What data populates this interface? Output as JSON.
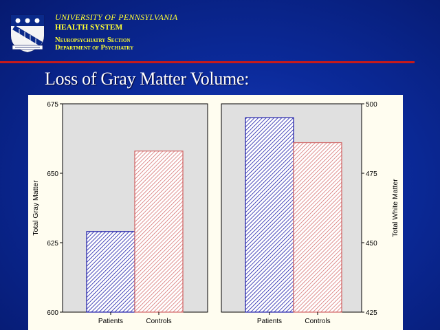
{
  "header": {
    "university": "UNIVERSITY OF PENNSYLVANIA",
    "health_system": "HEALTH SYSTEM",
    "section": "Neuropsychiatry Section",
    "department": "Department of Psychiatry",
    "rule_color": "#c81a1a",
    "text_color": "#ffff33"
  },
  "slide": {
    "title": "Loss of Gray Matter Volume:"
  },
  "colors": {
    "patients": "#1a1aa8",
    "controls": "#d06060",
    "panel_bg": "#e0e0e0"
  },
  "chart_data": [
    {
      "type": "bar",
      "categories": [
        "Patients",
        "Controls"
      ],
      "values": [
        629,
        658
      ],
      "title": "",
      "xlabel": "",
      "ylabel": "Total Gray Matter",
      "ylim": [
        600,
        675
      ],
      "yticks": [
        "600",
        "625",
        "650",
        "675"
      ],
      "y_axis": "left",
      "grid": false
    },
    {
      "type": "bar",
      "categories": [
        "Patients",
        "Controls"
      ],
      "values": [
        495,
        486
      ],
      "title": "",
      "xlabel": "",
      "ylabel": "Total White Matter",
      "ylim": [
        425,
        500
      ],
      "yticks": [
        "425",
        "450",
        "475",
        "500"
      ],
      "y_axis": "right",
      "grid": false
    }
  ]
}
